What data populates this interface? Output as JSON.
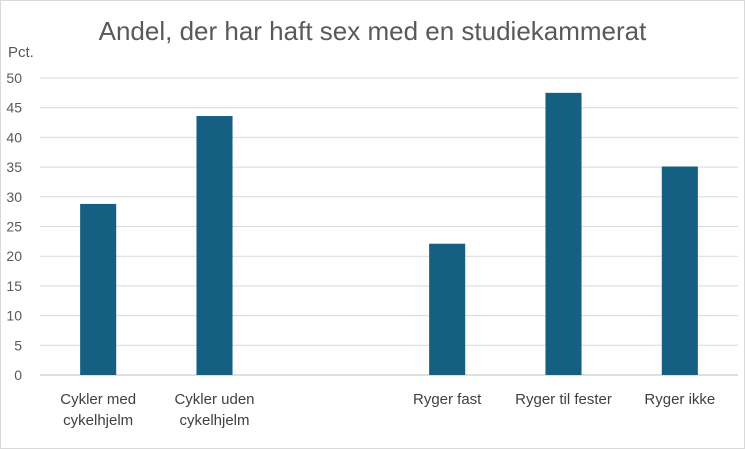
{
  "chart_data": {
    "type": "bar",
    "title": "Andel, der har haft sex med en studiekammerat",
    "ylabel": "Pct.",
    "xlabel": "",
    "ylim": [
      0,
      50
    ],
    "yticks": [
      0,
      5,
      10,
      15,
      20,
      25,
      30,
      35,
      40,
      45,
      50
    ],
    "grid": true,
    "legend": "none",
    "bar_color": "#156082",
    "categories": [
      [
        "Cykler med",
        "cykelhjelm"
      ],
      [
        "Cykler uden",
        "cykelhjelm"
      ],
      [
        ""
      ],
      [
        "Ryger fast"
      ],
      [
        "Ryger til fester"
      ],
      [
        "Ryger ikke"
      ]
    ],
    "values": [
      28.8,
      43.6,
      null,
      22.1,
      47.5,
      35.1
    ]
  }
}
